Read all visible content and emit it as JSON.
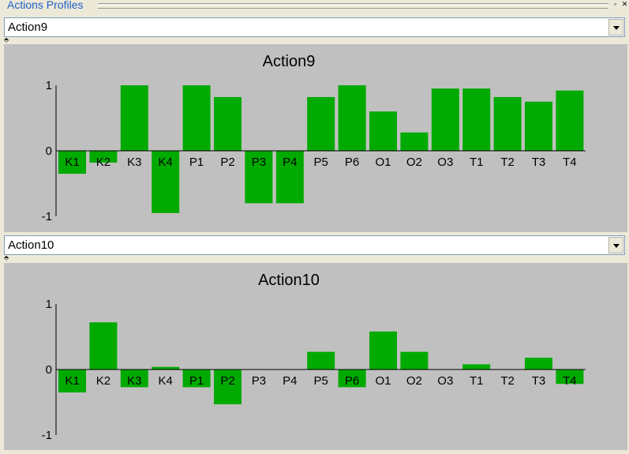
{
  "window": {
    "title": "Actions Profiles"
  },
  "colors": {
    "bar": "#00aa00",
    "panel": "#c0c0c0",
    "title_text": "#1f5fc8"
  },
  "profiles": [
    {
      "selector_value": "Action9"
    },
    {
      "selector_value": "Action10"
    }
  ],
  "chart_data": [
    {
      "type": "bar",
      "title": "Action9",
      "categories": [
        "K1",
        "K2",
        "K3",
        "K4",
        "P1",
        "P2",
        "P3",
        "P4",
        "P5",
        "P6",
        "O1",
        "O2",
        "O3",
        "T1",
        "T2",
        "T3",
        "T4"
      ],
      "values": [
        -0.35,
        -0.18,
        1.0,
        -0.95,
        1.0,
        0.82,
        -0.8,
        -0.8,
        0.82,
        1.0,
        0.6,
        0.28,
        0.95,
        0.95,
        0.82,
        0.75,
        0.92
      ],
      "yticks": [
        1,
        0,
        -1
      ],
      "ylim": [
        -1,
        1
      ],
      "grid": false
    },
    {
      "type": "bar",
      "title": "Action10",
      "categories": [
        "K1",
        "K2",
        "K3",
        "K4",
        "P1",
        "P2",
        "P3",
        "P4",
        "P5",
        "P6",
        "O1",
        "O2",
        "O3",
        "T1",
        "T2",
        "T3",
        "T4"
      ],
      "values": [
        -0.35,
        0.72,
        -0.27,
        0.04,
        -0.27,
        -0.53,
        0.0,
        0.0,
        0.27,
        -0.27,
        0.58,
        0.27,
        0.0,
        0.08,
        0.0,
        0.18,
        -0.22
      ],
      "yticks": [
        1,
        0,
        -1
      ],
      "ylim": [
        -1,
        1
      ],
      "grid": false
    }
  ]
}
